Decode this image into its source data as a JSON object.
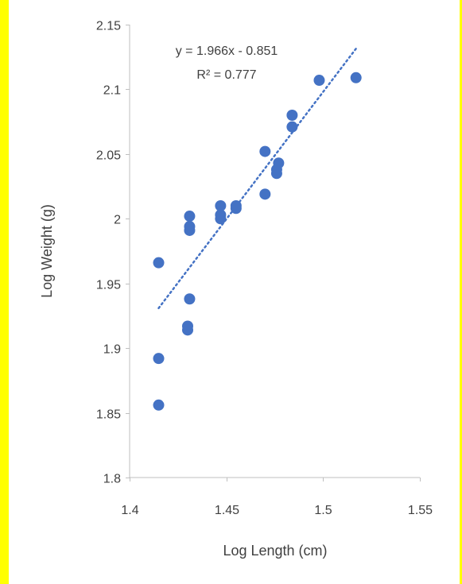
{
  "colors": {
    "highlight_border": "#ffff00",
    "marker": "#4472c4",
    "trendline": "#4472c4",
    "axis": "#bfbfbf",
    "text": "#404040"
  },
  "chart_data": {
    "type": "scatter",
    "xlabel": "Log Length (cm)",
    "ylabel": "Log Weight (g)",
    "xlim": [
      1.4,
      1.55
    ],
    "ylim": [
      1.8,
      2.15
    ],
    "x_ticks": [
      1.4,
      1.45,
      1.5,
      1.55
    ],
    "x_tick_labels": [
      "1.4",
      "1.45",
      "1.5",
      "1.55"
    ],
    "y_ticks": [
      1.8,
      1.85,
      1.9,
      1.95,
      2.0,
      2.05,
      2.1,
      2.15
    ],
    "y_tick_labels": [
      "1.8",
      "1.85",
      "1.9",
      "1.95",
      "2",
      "2.05",
      "2.1",
      "2.15"
    ],
    "grid": false,
    "legend": "none",
    "points": [
      {
        "x": 1.415,
        "y": 1.856
      },
      {
        "x": 1.415,
        "y": 1.892
      },
      {
        "x": 1.415,
        "y": 1.966
      },
      {
        "x": 1.43,
        "y": 1.914
      },
      {
        "x": 1.43,
        "y": 1.917
      },
      {
        "x": 1.431,
        "y": 1.938
      },
      {
        "x": 1.431,
        "y": 1.991
      },
      {
        "x": 1.431,
        "y": 1.994
      },
      {
        "x": 1.431,
        "y": 2.002
      },
      {
        "x": 1.447,
        "y": 2.0
      },
      {
        "x": 1.447,
        "y": 2.003
      },
      {
        "x": 1.447,
        "y": 2.01
      },
      {
        "x": 1.455,
        "y": 2.008
      },
      {
        "x": 1.455,
        "y": 2.01
      },
      {
        "x": 1.47,
        "y": 2.019
      },
      {
        "x": 1.47,
        "y": 2.052
      },
      {
        "x": 1.476,
        "y": 2.035
      },
      {
        "x": 1.476,
        "y": 2.038
      },
      {
        "x": 1.477,
        "y": 2.043
      },
      {
        "x": 1.484,
        "y": 2.071
      },
      {
        "x": 1.484,
        "y": 2.08
      },
      {
        "x": 1.498,
        "y": 2.107
      },
      {
        "x": 1.517,
        "y": 2.109
      }
    ],
    "trendline": {
      "type": "linear",
      "slope": 1.966,
      "intercept": -0.851,
      "x_range": [
        1.415,
        1.517
      ],
      "equation_label": "y = 1.966x - 0.851",
      "r2_label": "R² = 0.777"
    }
  }
}
